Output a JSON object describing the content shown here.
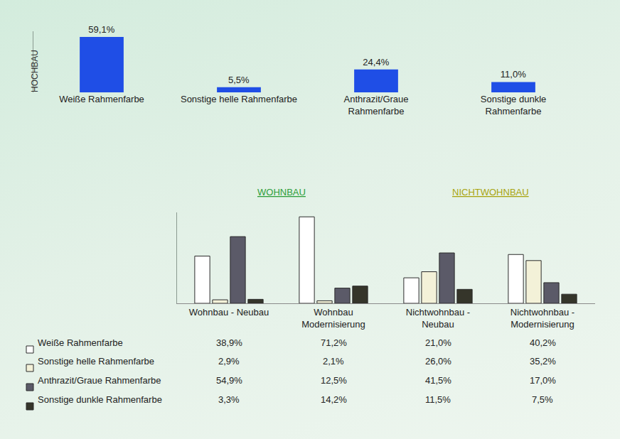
{
  "chart_data": [
    {
      "type": "bar",
      "ylabel": "HOCHBAU",
      "categories": [
        "Weiße Rahmenfarbe",
        "Sonstige helle Rahmenfarbe",
        "Anthrazit/Graue Rahmenfarbe",
        "Sonstige dunkle Rahmenfarbe"
      ],
      "values": [
        59.1,
        5.5,
        24.4,
        11.0
      ],
      "value_labels": [
        "59,1%",
        "5,5%",
        "24,4%",
        "11,0%"
      ],
      "color": "#1f4ee6",
      "ylim": [
        0,
        65
      ],
      "data_labels": true,
      "tick_labels": "x",
      "grid": false
    },
    {
      "type": "bar",
      "annotations": [
        "WOHNBAU",
        "NICHTWOHNBAU"
      ],
      "categories": [
        "Wohnbau - Neubau",
        "Wohnbau Modernisierung",
        "Nichtwohnbau - Neubau",
        "Nichtwohnbau - Modernisierung"
      ],
      "series": [
        {
          "name": "Weiße Rahmenfarbe",
          "color": "#ffffff",
          "values": [
            38.9,
            71.2,
            21.0,
            40.2
          ],
          "value_labels": [
            "38,9%",
            "71,2%",
            "21,0%",
            "40,2%"
          ]
        },
        {
          "name": "Sonstige helle Rahmenfarbe",
          "color": "#f3f1d8",
          "values": [
            2.9,
            2.1,
            26.0,
            35.2
          ],
          "value_labels": [
            "2,9%",
            "2,1%",
            "26,0%",
            "35,2%"
          ]
        },
        {
          "name": "Anthrazit/Graue Rahmenfarbe",
          "color": "#5b5a68",
          "values": [
            54.9,
            12.5,
            41.5,
            17.0
          ],
          "value_labels": [
            "54,9%",
            "12,5%",
            "41,5%",
            "17,0%"
          ]
        },
        {
          "name": "Sonstige dunkle Rahmenfarbe",
          "color": "#35352a",
          "values": [
            3.3,
            14.2,
            11.5,
            7.5
          ],
          "value_labels": [
            "3,3%",
            "14,2%",
            "11,5%",
            "7,5%"
          ]
        }
      ],
      "ylim": [
        0,
        75
      ],
      "legend": "bottom",
      "tick_labels": "x",
      "grid": false
    }
  ]
}
